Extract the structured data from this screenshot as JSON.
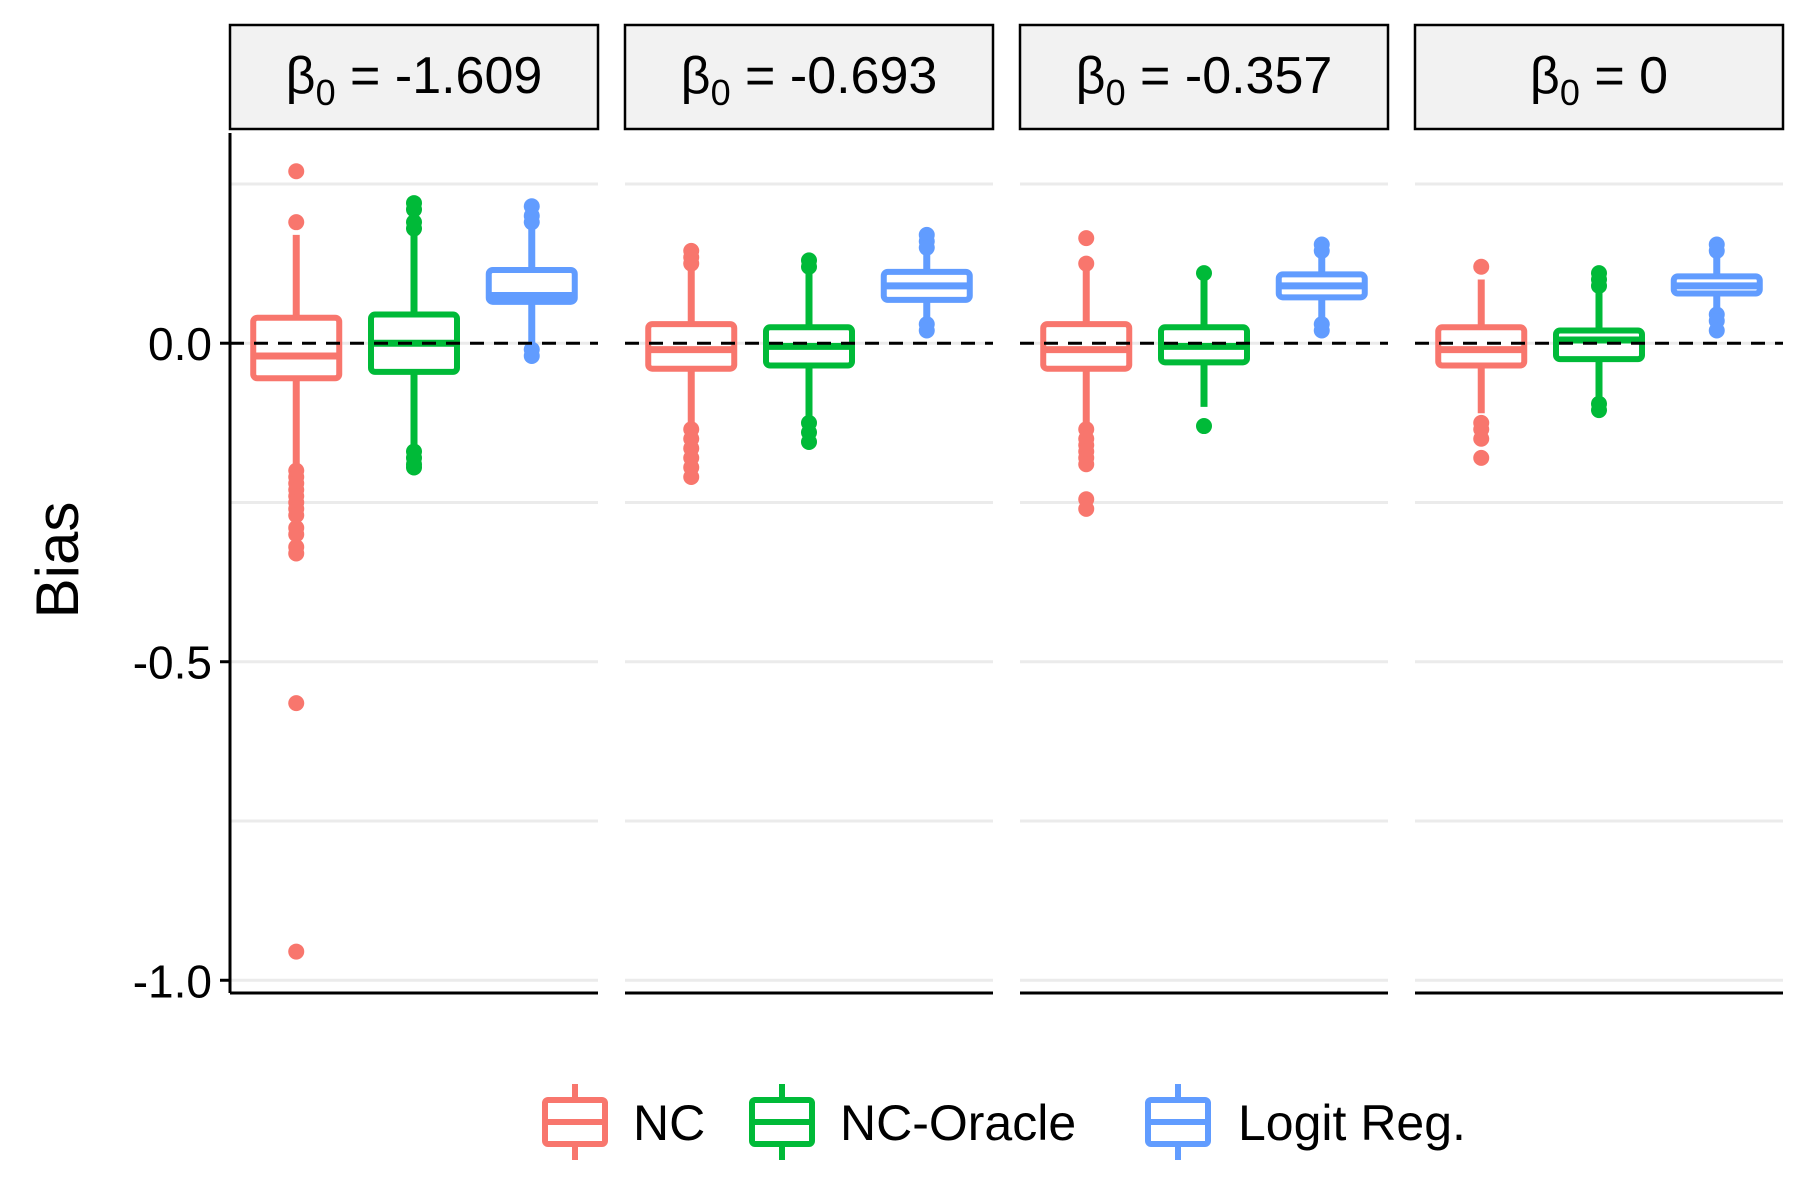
{
  "chart_data": {
    "type": "boxplot",
    "ylabel": "Bias",
    "xlabel": "",
    "ylim": [
      -1.02,
      0.33
    ],
    "yticks": [
      0.0,
      -0.5,
      -1.0
    ],
    "ytick_labels": [
      "0.0",
      "-0.5",
      "-1.0"
    ],
    "grid": true,
    "reference_line": 0.0,
    "legend_position": "bottom",
    "series": [
      {
        "name": "NC",
        "color": "#F8766D"
      },
      {
        "name": "NC-Oracle",
        "color": "#00BA38"
      },
      {
        "name": "Logit Reg.",
        "color": "#619CFF"
      }
    ],
    "panels": [
      {
        "beta_value": "-1.609",
        "boxes": [
          {
            "series": "NC",
            "q1": -0.055,
            "median": -0.02,
            "q3": 0.04,
            "whisker_low": -0.2,
            "whisker_high": 0.17,
            "outliers": [
              0.27,
              0.19,
              -0.2,
              -0.21,
              -0.22,
              -0.23,
              -0.24,
              -0.25,
              -0.26,
              -0.27,
              -0.29,
              -0.3,
              -0.32,
              -0.33,
              -0.565,
              -0.955
            ]
          },
          {
            "series": "NC-Oracle",
            "q1": -0.045,
            "median": 0.0,
            "q3": 0.045,
            "whisker_low": -0.17,
            "whisker_high": 0.17,
            "outliers": [
              0.22,
              0.21,
              0.19,
              0.18,
              -0.17,
              -0.18,
              -0.19,
              -0.195
            ]
          },
          {
            "series": "Logit Reg.",
            "q1": 0.065,
            "median": 0.075,
            "q3": 0.115,
            "whisker_low": 0.0,
            "whisker_high": 0.18,
            "outliers": [
              0.215,
              0.2,
              0.19,
              -0.01,
              -0.02
            ]
          }
        ]
      },
      {
        "beta_value": "-0.693",
        "boxes": [
          {
            "series": "NC",
            "q1": -0.04,
            "median": -0.01,
            "q3": 0.03,
            "whisker_low": -0.13,
            "whisker_high": 0.12,
            "outliers": [
              0.145,
              0.135,
              0.125,
              -0.135,
              -0.15,
              -0.165,
              -0.18,
              -0.195,
              -0.21
            ]
          },
          {
            "series": "NC-Oracle",
            "q1": -0.035,
            "median": -0.005,
            "q3": 0.025,
            "whisker_low": -0.12,
            "whisker_high": 0.11,
            "outliers": [
              0.13,
              0.12,
              -0.125,
              -0.14,
              -0.155
            ]
          },
          {
            "series": "Logit Reg.",
            "q1": 0.068,
            "median": 0.09,
            "q3": 0.112,
            "whisker_low": 0.035,
            "whisker_high": 0.145,
            "outliers": [
              0.17,
              0.16,
              0.15,
              0.03,
              0.02
            ]
          }
        ]
      },
      {
        "beta_value": "-0.357",
        "boxes": [
          {
            "series": "NC",
            "q1": -0.04,
            "median": -0.01,
            "q3": 0.03,
            "whisker_low": -0.13,
            "whisker_high": 0.12,
            "outliers": [
              0.165,
              0.125,
              -0.135,
              -0.15,
              -0.16,
              -0.17,
              -0.18,
              -0.19,
              -0.245,
              -0.26
            ]
          },
          {
            "series": "NC-Oracle",
            "q1": -0.03,
            "median": -0.005,
            "q3": 0.025,
            "whisker_low": -0.1,
            "whisker_high": 0.1,
            "outliers": [
              0.11,
              -0.13
            ]
          },
          {
            "series": "Logit Reg.",
            "q1": 0.072,
            "median": 0.09,
            "q3": 0.108,
            "whisker_low": 0.035,
            "whisker_high": 0.14,
            "outliers": [
              0.155,
              0.145,
              0.03,
              0.02
            ]
          }
        ]
      },
      {
        "beta_value": "0",
        "boxes": [
          {
            "series": "NC",
            "q1": -0.035,
            "median": -0.01,
            "q3": 0.025,
            "whisker_low": -0.11,
            "whisker_high": 0.1,
            "outliers": [
              0.12,
              -0.125,
              -0.135,
              -0.15,
              -0.18
            ]
          },
          {
            "series": "NC-Oracle",
            "q1": -0.025,
            "median": 0.005,
            "q3": 0.02,
            "whisker_low": -0.09,
            "whisker_high": 0.09,
            "outliers": [
              0.11,
              0.1,
              0.09,
              -0.095,
              -0.105
            ]
          },
          {
            "series": "Logit Reg.",
            "q1": 0.078,
            "median": 0.09,
            "q3": 0.105,
            "whisker_low": 0.045,
            "whisker_high": 0.14,
            "outliers": [
              0.155,
              0.145,
              0.045,
              0.035,
              0.02
            ]
          }
        ]
      }
    ]
  }
}
